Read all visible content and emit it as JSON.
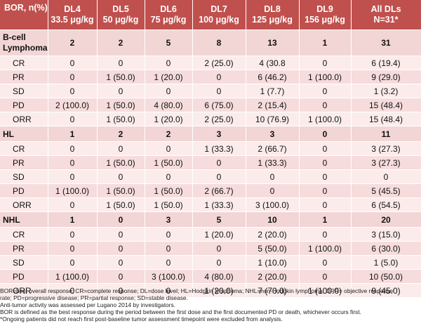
{
  "header": {
    "first": "BOR, n(%)",
    "columns": [
      {
        "l1": "DL4",
        "l2": "33.5 μg/kg"
      },
      {
        "l1": "DL5",
        "l2": "50 μg/kg"
      },
      {
        "l1": "DL6",
        "l2": "75 μg/kg"
      },
      {
        "l1": "DL7",
        "l2": "100 μg/kg"
      },
      {
        "l1": "DL8",
        "l2": "125 μg/kg"
      },
      {
        "l1": "DL9",
        "l2": "156 μg/kg"
      },
      {
        "l1": "All DLs",
        "l2": "N=31*"
      }
    ]
  },
  "groups": [
    {
      "l1": "B-cell",
      "l2": "Lymphoma",
      "values": [
        "2",
        "2",
        "5",
        "8",
        "13",
        "1",
        "31"
      ],
      "rows": [
        {
          "label": "CR",
          "values": [
            "0",
            "0",
            "0",
            "2 (25.0)",
            "4 (30.8",
            "0",
            "6 (19.4)"
          ]
        },
        {
          "label": "PR",
          "values": [
            "0",
            "1 (50.0)",
            "1 (20.0)",
            "0",
            "6 (46.2)",
            "1 (100.0)",
            "9 (29.0)"
          ]
        },
        {
          "label": "SD",
          "values": [
            "0",
            "0",
            "0",
            "0",
            "1 (7.7)",
            "0",
            "1 (3.2)"
          ]
        },
        {
          "label": "PD",
          "values": [
            "2 (100.0)",
            "1 (50.0)",
            "4 (80.0)",
            "6 (75.0)",
            "2 (15.4)",
            "0",
            "15 (48.4)"
          ]
        },
        {
          "label": "ORR",
          "values": [
            "0",
            "1 (50.0)",
            "1 (20.0)",
            "2 (25.0)",
            "10 (76.9)",
            "1 (100.0)",
            "15 (48.4)"
          ]
        }
      ]
    },
    {
      "l1": "HL",
      "l2": "",
      "values": [
        "1",
        "2",
        "2",
        "3",
        "3",
        "0",
        "11"
      ],
      "rows": [
        {
          "label": "CR",
          "values": [
            "0",
            "0",
            "0",
            "1 (33.3)",
            "2 (66.7)",
            "0",
            "3 (27.3)"
          ]
        },
        {
          "label": "PR",
          "values": [
            "0",
            "1 (50.0)",
            "1 (50.0)",
            "0",
            "1 (33.3)",
            "0",
            "3 (27.3)"
          ]
        },
        {
          "label": "SD",
          "values": [
            "0",
            "0",
            "0",
            "0",
            "0",
            "0",
            "0"
          ]
        },
        {
          "label": "PD",
          "values": [
            "1 (100.0)",
            "1 (50.0)",
            "1 (50.0)",
            "2 (66.7)",
            "0",
            "0",
            "5 (45.5)"
          ]
        },
        {
          "label": "ORR",
          "values": [
            "0",
            "1 (50.0)",
            "1 (50.0)",
            "1 (33.3)",
            "3 (100.0)",
            "0",
            "6 (54.5)"
          ]
        }
      ]
    },
    {
      "l1": "NHL",
      "l2": "",
      "values": [
        "1",
        "0",
        "3",
        "5",
        "10",
        "1",
        "20"
      ],
      "rows": [
        {
          "label": "CR",
          "values": [
            "0",
            "0",
            "0",
            "1 (20.0)",
            "2 (20.0)",
            "0",
            "3 (15.0)"
          ]
        },
        {
          "label": "PR",
          "values": [
            "0",
            "0",
            "0",
            "0",
            "5 (50.0)",
            "1 (100.0)",
            "6 (30.0)"
          ]
        },
        {
          "label": "SD",
          "values": [
            "0",
            "0",
            "0",
            "0",
            "1 (10.0)",
            "0",
            "1 (5.0)"
          ]
        },
        {
          "label": "PD",
          "values": [
            "1 (100.0)",
            "0",
            "3 (100.0)",
            "4 (80.0)",
            "2 (20.0)",
            "0",
            "10 (50.0)"
          ]
        },
        {
          "label": "ORR",
          "values": [
            "0",
            "0",
            "0",
            "1 (20.0)",
            "7 (70.0)",
            "1 (100.0)",
            "9 (45.0)"
          ]
        }
      ]
    }
  ],
  "footnotes": [
    "BOR=best overall response; CR=complete response; DL=dose level; HL=Hodgkin lymphoma; NHL=non-Hodgkin lymphoma; ORR= objective response",
    "rate; PD=progressive disease; PR=partial response; SD=stable disease.",
    "Anti-tumor activity was assessed per Lugano 2014 by investigators.",
    "BOR is defined as the best response during the period between the first dose and the first documented PD or death, whichever occurs first.",
    "*Ongoing patients did not reach first post-baseline tumor assessment timepoint were excluded from analysis."
  ]
}
